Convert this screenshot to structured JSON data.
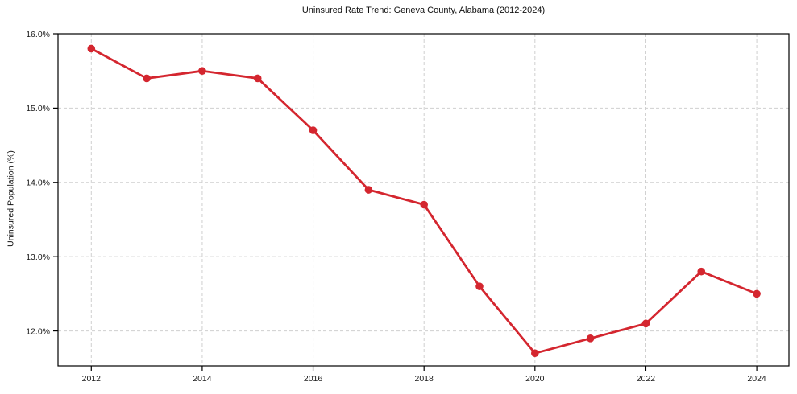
{
  "chart_data": {
    "type": "line",
    "title": "Uninsured Rate Trend: Geneva County, Alabama (2012-2024)",
    "xlabel": "",
    "ylabel": "Uninsured Population (%)",
    "x": [
      2012,
      2013,
      2014,
      2015,
      2016,
      2017,
      2018,
      2019,
      2020,
      2021,
      2022,
      2023,
      2024
    ],
    "values": [
      15.8,
      15.4,
      15.5,
      15.4,
      14.7,
      13.9,
      13.7,
      12.6,
      11.7,
      11.9,
      12.1,
      12.8,
      12.5
    ],
    "xticks": [
      2012,
      2014,
      2016,
      2018,
      2020,
      2022,
      2024
    ],
    "xtick_labels": [
      "2012",
      "2014",
      "2016",
      "2018",
      "2020",
      "2022",
      "2024"
    ],
    "yticks": [
      12,
      13,
      14,
      15,
      16
    ],
    "ytick_labels": [
      "12.0%",
      "13.0%",
      "14.0%",
      "15.0%",
      "16.0%"
    ],
    "xlim": [
      2011.4,
      2024.58
    ],
    "ylim": [
      11.53,
      16.0
    ],
    "grid": true,
    "grid_style": "dashed",
    "legend": "none",
    "marker": "circle",
    "colors": {
      "line": "#d4262f",
      "grid": "#cfcfcf",
      "spine": "#000000",
      "tick_text": "#1a1a1a",
      "background": "#ffffff"
    }
  }
}
